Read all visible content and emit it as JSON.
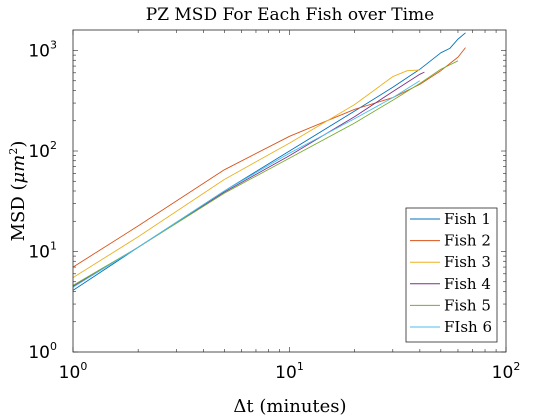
{
  "chart_data": {
    "type": "line",
    "title": "PZ MSD For Each Fish over Time",
    "xlabel": "Δt (minutes)",
    "ylabel_main": "MSD (",
    "ylabel_mu": "μ",
    "ylabel_unit": "m",
    "ylabel_exp": "2",
    "ylabel_close": ")",
    "x_scale": "log",
    "y_scale": "log",
    "xlim": [
      1,
      100
    ],
    "ylim": [
      1,
      1600
    ],
    "x_ticks": [
      {
        "value": 1,
        "base": "10",
        "exp": "0"
      },
      {
        "value": 10,
        "base": "10",
        "exp": "1"
      },
      {
        "value": 100,
        "base": "10",
        "exp": "2"
      }
    ],
    "y_ticks": [
      {
        "value": 1,
        "base": "10",
        "exp": "0"
      },
      {
        "value": 10,
        "base": "10",
        "exp": "1"
      },
      {
        "value": 100,
        "base": "10",
        "exp": "2"
      },
      {
        "value": 1000,
        "base": "10",
        "exp": "3"
      }
    ],
    "grid": false,
    "legend_position": "bottom-right",
    "series": [
      {
        "name": "Fish 1",
        "color": "#0072BD",
        "x": [
          1,
          2,
          5,
          10,
          20,
          30,
          40,
          50,
          55,
          60,
          65
        ],
        "y": [
          4.1,
          11,
          40,
          100,
          250,
          430,
          650,
          950,
          1050,
          1300,
          1500
        ]
      },
      {
        "name": "Fish 2",
        "color": "#D95319",
        "x": [
          1,
          2,
          5,
          10,
          20,
          30,
          40,
          50,
          60,
          65
        ],
        "y": [
          7,
          18,
          65,
          140,
          260,
          340,
          460,
          630,
          860,
          1070
        ]
      },
      {
        "name": "Fish 3",
        "color": "#EDB120",
        "x": [
          1,
          2,
          5,
          10,
          20,
          30,
          35,
          40
        ],
        "y": [
          5.5,
          14,
          52,
          120,
          290,
          550,
          630,
          640
        ]
      },
      {
        "name": "Fish 4",
        "color": "#7E2F8E",
        "x": [
          1,
          2,
          5,
          10,
          20,
          30,
          40,
          42
        ],
        "y": [
          4.5,
          11,
          39,
          90,
          220,
          390,
          580,
          610
        ]
      },
      {
        "name": "Fish 5",
        "color": "#77AC30",
        "x": [
          1,
          2,
          5,
          10,
          20,
          30,
          40,
          50,
          55,
          60
        ],
        "y": [
          4.6,
          11,
          38,
          85,
          190,
          320,
          470,
          650,
          720,
          790
        ]
      },
      {
        "name": "FIsh 6",
        "color": "#4DBEEE",
        "x": [
          1,
          2,
          5,
          10,
          20,
          30,
          40
        ],
        "y": [
          4.4,
          11,
          40,
          95,
          210,
          340,
          500
        ]
      }
    ]
  }
}
